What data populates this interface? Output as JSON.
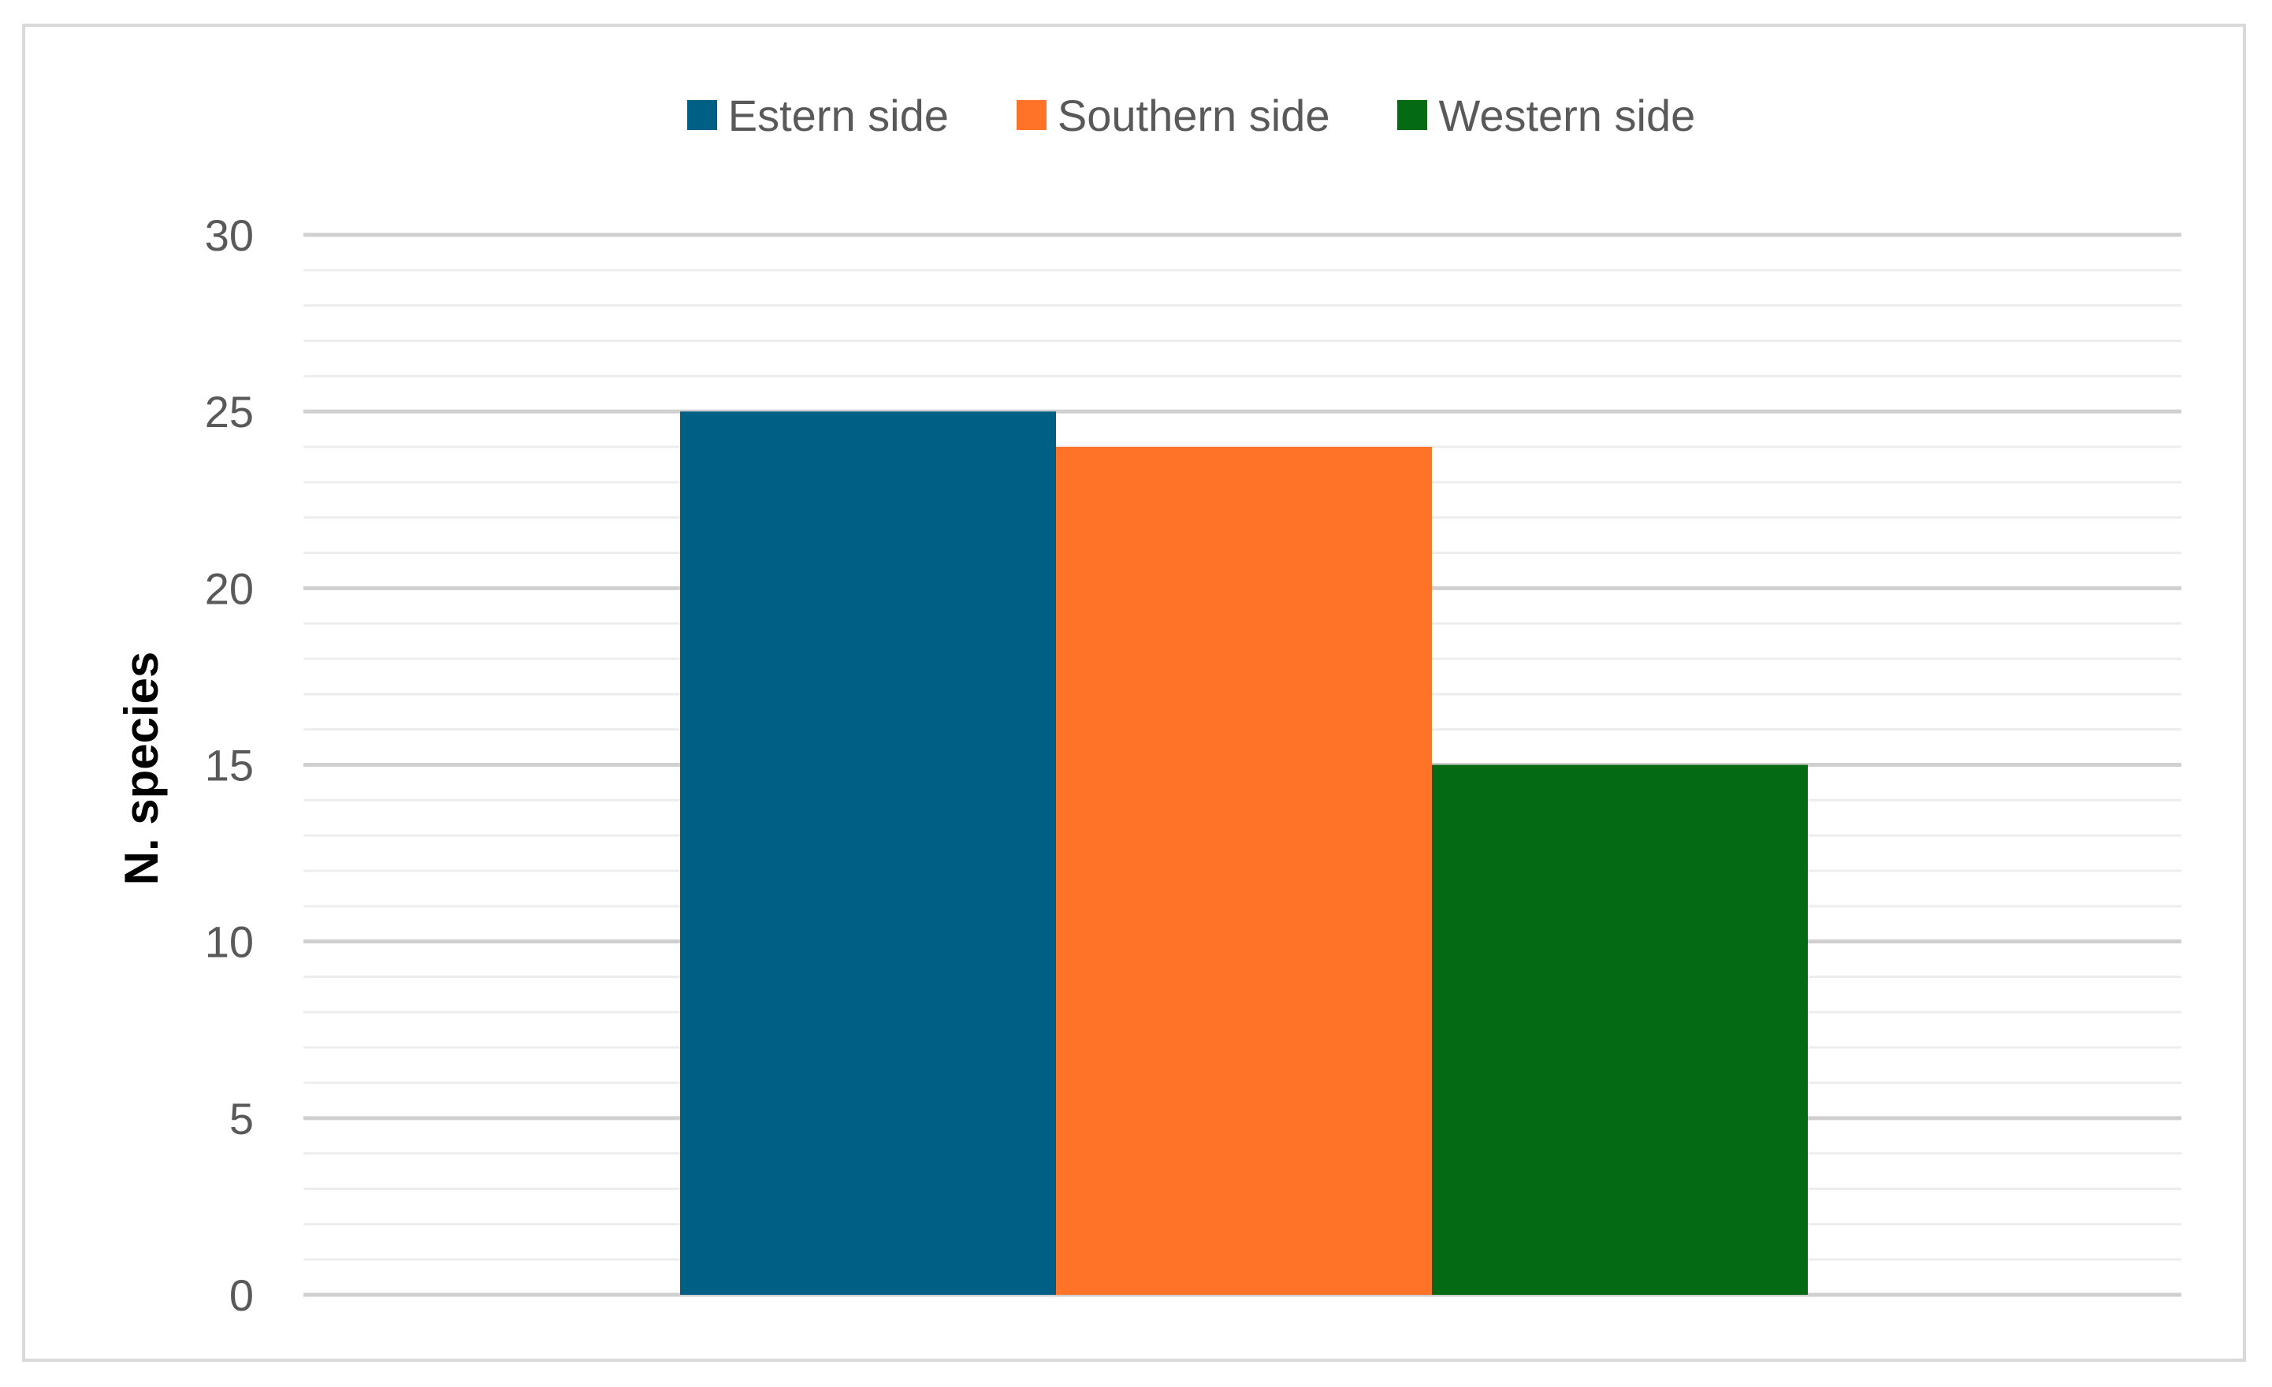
{
  "chart_data": {
    "type": "bar",
    "categories": [
      ""
    ],
    "series": [
      {
        "name": "Estern side",
        "values": [
          25
        ],
        "color": "#005F85"
      },
      {
        "name": "Southern side",
        "values": [
          24
        ],
        "color": "#FF7328"
      },
      {
        "name": "Western side",
        "values": [
          15
        ],
        "color": "#046A14"
      }
    ],
    "ylabel": "N. species",
    "xlabel": "",
    "ylim": [
      0,
      30
    ],
    "yticks": [
      "0",
      "5",
      "10",
      "15",
      "20",
      "25",
      "30"
    ],
    "grid": true,
    "legend": "top-center"
  }
}
